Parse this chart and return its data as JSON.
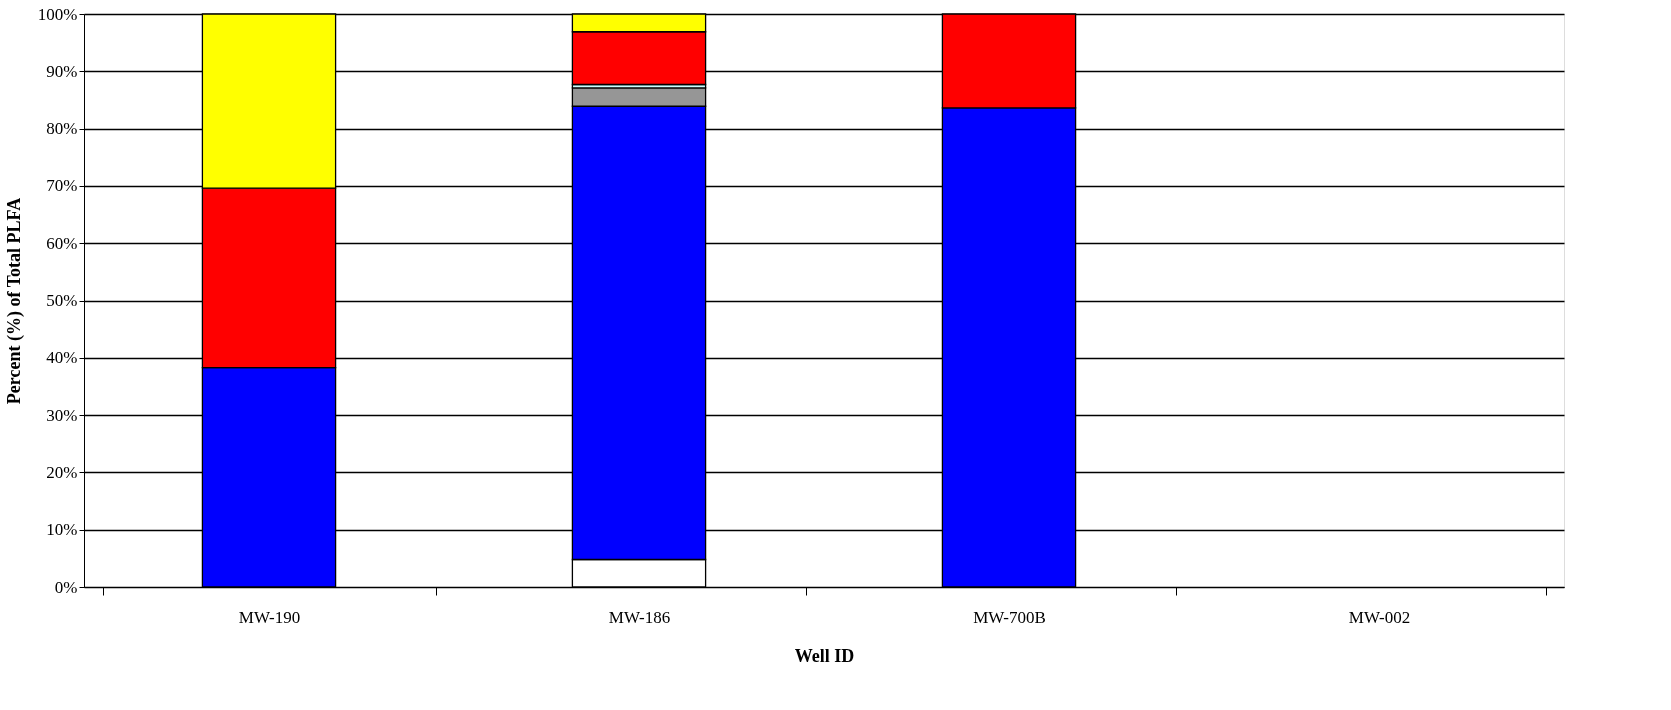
{
  "chart_data": {
    "type": "bar",
    "stacked": true,
    "xlabel": "Well ID",
    "ylabel": "Percent (%) of Total PLFA",
    "categories": [
      "MW-190",
      "MW-186",
      "MW-700B",
      "MW-002"
    ],
    "series": [
      {
        "color": "#ffffff",
        "values": [
          null,
          4.8,
          null,
          null
        ]
      },
      {
        "color": "#0000ff",
        "values": [
          38.3,
          79.1,
          83.6,
          null
        ]
      },
      {
        "color": "#969696",
        "values": [
          null,
          3.2,
          null,
          null
        ]
      },
      {
        "color": "#ccffff",
        "values": [
          null,
          0.6,
          null,
          null
        ]
      },
      {
        "color": "#ff0000",
        "values": [
          31.3,
          9.2,
          16.4,
          null
        ]
      },
      {
        "color": "#ffff00",
        "values": [
          30.4,
          3.1,
          null,
          null
        ]
      }
    ],
    "ylim": [
      0,
      100
    ],
    "yticks": [
      {
        "value": 0,
        "label": "0%"
      },
      {
        "value": 10,
        "label": "10%"
      },
      {
        "value": 20,
        "label": "20%"
      },
      {
        "value": 30,
        "label": "30%"
      },
      {
        "value": 40,
        "label": "40%"
      },
      {
        "value": 50,
        "label": "50%"
      },
      {
        "value": 60,
        "label": "60%"
      },
      {
        "value": 70,
        "label": "70%"
      },
      {
        "value": 80,
        "label": "80%"
      },
      {
        "value": 90,
        "label": "90%"
      },
      {
        "value": 100,
        "label": "100%"
      }
    ],
    "grid": "y",
    "legend": false
  }
}
